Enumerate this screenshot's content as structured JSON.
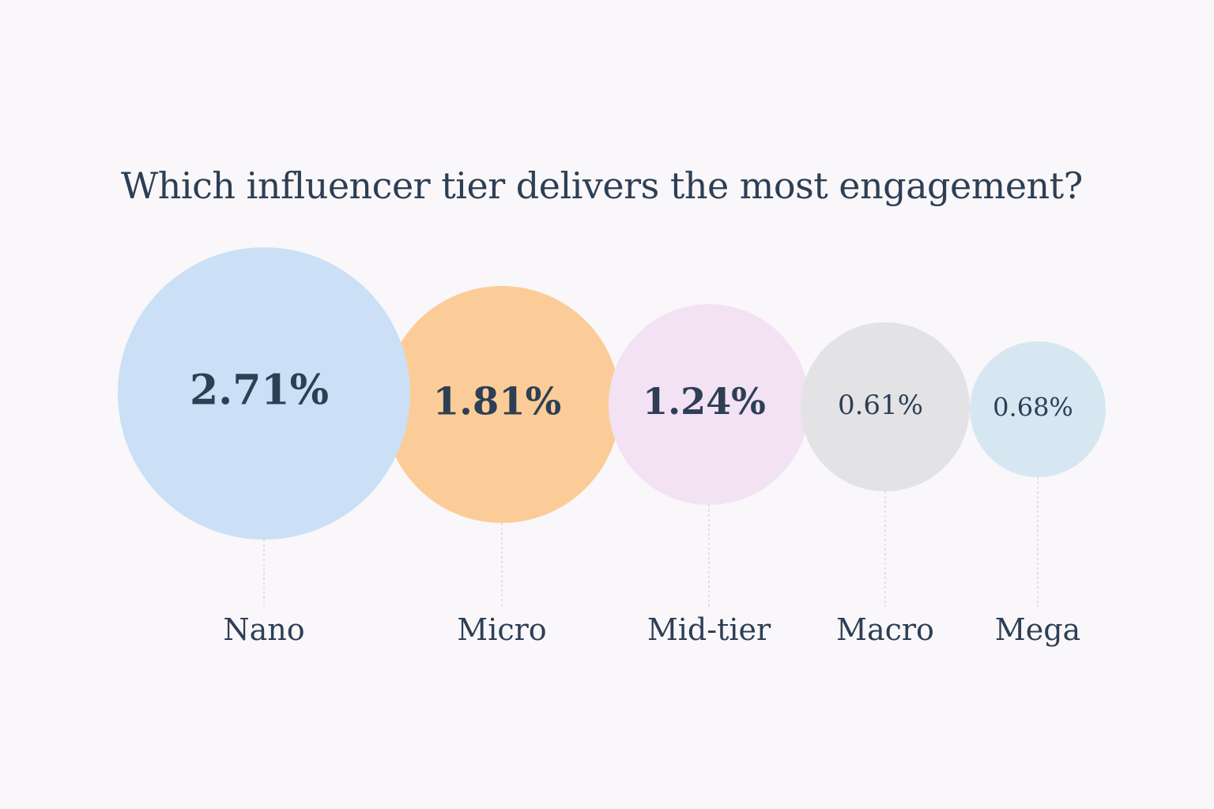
{
  "chart_data": {
    "type": "bubble",
    "title": "Which influencer tier delivers the most engagement?",
    "categories": [
      "Nano",
      "Micro",
      "Mid-tier",
      "Macro",
      "Mega"
    ],
    "values": [
      2.71,
      1.81,
      1.24,
      0.61,
      0.68
    ],
    "value_labels": [
      "2.71%",
      "1.81%",
      "1.24%",
      "0.61%",
      "0.68%"
    ],
    "unit": "%",
    "colors": [
      "#cbdff6",
      "#fccc98",
      "#f3e1f4",
      "#e3e3e6",
      "#d6e7f2"
    ],
    "text_color": "#2d3f55",
    "leader_line_color": "#d0d0d6",
    "background": "#f9f7f9",
    "grid": false,
    "legend": "none"
  }
}
